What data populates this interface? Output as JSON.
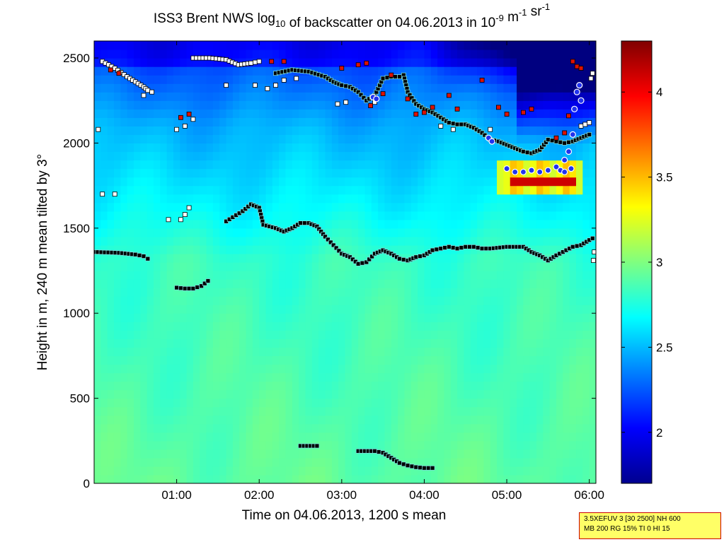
{
  "chart_data": {
    "type": "heatmap",
    "title": {
      "parts": [
        {
          "text": "ISS3 Brent NWS log"
        },
        {
          "text": "10",
          "sub": true
        },
        {
          "text": " of backscatter on 04.06.2013 in 10"
        },
        {
          "text": "-9",
          "sup": true
        },
        {
          "text": " m"
        },
        {
          "text": "-1",
          "sup": true
        },
        {
          "text": " sr"
        },
        {
          "text": "-1",
          "sup": true
        }
      ]
    },
    "xlabel": "Time on 04.06.2013, 1200 s mean",
    "ylabel": "Height in m, 240 m mean tilted by 3°",
    "x_unit": "hours",
    "xlim": [
      0.0,
      6.08
    ],
    "ylim": [
      0,
      2600
    ],
    "xticks": [
      {
        "value": 1,
        "label": "01:00"
      },
      {
        "value": 2,
        "label": "02:00"
      },
      {
        "value": 3,
        "label": "03:00"
      },
      {
        "value": 4,
        "label": "04:00"
      },
      {
        "value": 5,
        "label": "05:00"
      },
      {
        "value": 6,
        "label": "06:00"
      }
    ],
    "yticks": [
      {
        "value": 0,
        "label": "0"
      },
      {
        "value": 500,
        "label": "500"
      },
      {
        "value": 1000,
        "label": "1000"
      },
      {
        "value": 1500,
        "label": "1500"
      },
      {
        "value": 2000,
        "label": "2000"
      },
      {
        "value": 2500,
        "label": "2500"
      }
    ],
    "colorbar": {
      "colormap": "jet",
      "range": [
        1.7,
        4.3
      ],
      "ticks": [
        {
          "value": 2,
          "label": "2"
        },
        {
          "value": 2.5,
          "label": "2.5"
        },
        {
          "value": 3,
          "label": "3"
        },
        {
          "value": 3.5,
          "label": "3.5"
        },
        {
          "value": 4,
          "label": "4"
        }
      ]
    },
    "layer_lines": [
      {
        "name": "boundary-layer-top",
        "style": "black-square",
        "points": [
          [
            0.0,
            1360
          ],
          [
            0.3,
            1355
          ],
          [
            0.5,
            1345
          ],
          [
            0.6,
            1335
          ],
          [
            0.65,
            1320
          ],
          [
            1.6,
            1540
          ],
          [
            1.8,
            1600
          ],
          [
            1.9,
            1640
          ],
          [
            2.0,
            1620
          ],
          [
            2.05,
            1520
          ],
          [
            2.2,
            1500
          ],
          [
            2.3,
            1480
          ],
          [
            2.4,
            1500
          ],
          [
            2.5,
            1530
          ],
          [
            2.6,
            1530
          ],
          [
            2.7,
            1510
          ],
          [
            2.8,
            1450
          ],
          [
            2.9,
            1400
          ],
          [
            3.0,
            1350
          ],
          [
            3.1,
            1330
          ],
          [
            3.2,
            1290
          ],
          [
            3.3,
            1300
          ],
          [
            3.4,
            1350
          ],
          [
            3.5,
            1370
          ],
          [
            3.6,
            1350
          ],
          [
            3.7,
            1320
          ],
          [
            3.8,
            1310
          ],
          [
            3.9,
            1330
          ],
          [
            4.0,
            1340
          ],
          [
            4.1,
            1370
          ],
          [
            4.2,
            1380
          ],
          [
            4.3,
            1390
          ],
          [
            4.4,
            1380
          ],
          [
            4.5,
            1390
          ],
          [
            4.6,
            1390
          ],
          [
            4.7,
            1380
          ],
          [
            4.8,
            1380
          ],
          [
            5.0,
            1390
          ],
          [
            5.2,
            1390
          ],
          [
            5.3,
            1360
          ],
          [
            5.4,
            1340
          ],
          [
            5.5,
            1310
          ],
          [
            5.6,
            1340
          ],
          [
            5.8,
            1390
          ],
          [
            5.9,
            1400
          ],
          [
            6.0,
            1430
          ],
          [
            6.04,
            1440
          ]
        ]
      },
      {
        "name": "low-layer-segment-1",
        "style": "black-square",
        "points": [
          [
            1.0,
            1150
          ],
          [
            1.1,
            1145
          ],
          [
            1.2,
            1145
          ],
          [
            1.3,
            1160
          ],
          [
            1.38,
            1190
          ]
        ]
      },
      {
        "name": "low-layer-segment-2",
        "style": "black-square",
        "points": [
          [
            2.5,
            220
          ],
          [
            2.7,
            220
          ]
        ]
      },
      {
        "name": "low-layer-segment-3",
        "style": "black-square",
        "points": [
          [
            3.2,
            190
          ],
          [
            3.4,
            190
          ],
          [
            3.5,
            180
          ],
          [
            3.6,
            150
          ],
          [
            3.7,
            120
          ],
          [
            3.8,
            105
          ],
          [
            3.9,
            95
          ],
          [
            4.0,
            90
          ],
          [
            4.1,
            90
          ]
        ]
      },
      {
        "name": "upper-layer",
        "style": "black-square",
        "points": [
          [
            2.2,
            2410
          ],
          [
            2.4,
            2430
          ],
          [
            2.6,
            2420
          ],
          [
            2.8,
            2390
          ],
          [
            2.9,
            2360
          ],
          [
            3.0,
            2340
          ],
          [
            3.1,
            2330
          ],
          [
            3.2,
            2300
          ],
          [
            3.3,
            2250
          ],
          [
            3.4,
            2280
          ],
          [
            3.5,
            2380
          ],
          [
            3.6,
            2390
          ],
          [
            3.7,
            2390
          ],
          [
            3.75,
            2400
          ],
          [
            3.8,
            2300
          ],
          [
            3.9,
            2230
          ],
          [
            4.0,
            2200
          ],
          [
            4.1,
            2180
          ],
          [
            4.2,
            2150
          ],
          [
            4.3,
            2120
          ],
          [
            4.4,
            2110
          ],
          [
            4.5,
            2110
          ],
          [
            4.6,
            2090
          ],
          [
            4.7,
            2060
          ],
          [
            4.8,
            2020
          ],
          [
            4.9,
            2010
          ],
          [
            5.0,
            1990
          ],
          [
            5.1,
            1970
          ],
          [
            5.2,
            1950
          ],
          [
            5.3,
            1940
          ],
          [
            5.4,
            1960
          ],
          [
            5.5,
            2020
          ],
          [
            5.6,
            2010
          ],
          [
            5.7,
            2000
          ],
          [
            5.8,
            2010
          ],
          [
            5.9,
            2030
          ],
          [
            6.0,
            2050
          ]
        ]
      },
      {
        "name": "top-left-cluster",
        "style": "white-square",
        "points": [
          [
            0.1,
            2480
          ],
          [
            0.25,
            2440
          ],
          [
            0.4,
            2390
          ],
          [
            0.5,
            2360
          ],
          [
            0.6,
            2330
          ],
          [
            0.65,
            2310
          ]
        ]
      },
      {
        "name": "top-mid-cluster",
        "style": "white-square",
        "points": [
          [
            1.2,
            2500
          ],
          [
            1.4,
            2500
          ],
          [
            1.6,
            2490
          ],
          [
            1.75,
            2460
          ],
          [
            1.9,
            2470
          ],
          [
            2.0,
            2480
          ]
        ]
      }
    ],
    "scatter_groups": [
      {
        "name": "white-marks",
        "style": "white-square",
        "points": [
          [
            0.05,
            2080
          ],
          [
            0.1,
            1700
          ],
          [
            0.25,
            1700
          ],
          [
            0.6,
            2280
          ],
          [
            0.7,
            2300
          ],
          [
            0.9,
            1550
          ],
          [
            1.05,
            1550
          ],
          [
            1.1,
            1580
          ],
          [
            1.15,
            1620
          ],
          [
            1.0,
            2080
          ],
          [
            1.1,
            2100
          ],
          [
            1.2,
            2140
          ],
          [
            1.6,
            2340
          ],
          [
            1.95,
            2340
          ],
          [
            2.1,
            2320
          ],
          [
            2.2,
            2340
          ],
          [
            2.3,
            2370
          ],
          [
            2.45,
            2380
          ],
          [
            2.95,
            2230
          ],
          [
            3.05,
            2240
          ],
          [
            3.4,
            2240
          ],
          [
            4.2,
            2100
          ],
          [
            4.35,
            2080
          ],
          [
            4.8,
            2080
          ],
          [
            5.9,
            2100
          ],
          [
            5.95,
            2110
          ],
          [
            6.0,
            2120
          ],
          [
            6.02,
            2380
          ],
          [
            6.04,
            2410
          ],
          [
            6.05,
            1310
          ],
          [
            6.06,
            1360
          ]
        ]
      },
      {
        "name": "red-marks",
        "style": "red-square",
        "points": [
          [
            0.2,
            2430
          ],
          [
            0.3,
            2410
          ],
          [
            1.05,
            2150
          ],
          [
            1.15,
            2170
          ],
          [
            2.15,
            2480
          ],
          [
            2.3,
            2480
          ],
          [
            3.0,
            2440
          ],
          [
            3.2,
            2460
          ],
          [
            3.3,
            2470
          ],
          [
            3.35,
            2220
          ],
          [
            3.5,
            2290
          ],
          [
            3.6,
            2400
          ],
          [
            3.8,
            2260
          ],
          [
            3.9,
            2170
          ],
          [
            4.0,
            2180
          ],
          [
            4.1,
            2210
          ],
          [
            4.3,
            2280
          ],
          [
            4.4,
            2200
          ],
          [
            4.7,
            2370
          ],
          [
            4.9,
            2210
          ],
          [
            5.0,
            2170
          ],
          [
            5.2,
            2180
          ],
          [
            5.3,
            2200
          ],
          [
            5.6,
            2030
          ],
          [
            5.7,
            2060
          ],
          [
            5.75,
            2160
          ],
          [
            5.8,
            2480
          ],
          [
            5.85,
            2450
          ],
          [
            5.9,
            2440
          ]
        ]
      }
    ],
    "cloud_marks": [
      {
        "name": "cloud-blue-ring",
        "style": "blue-circle",
        "points": [
          [
            3.38,
            2270
          ],
          [
            3.42,
            2260
          ],
          [
            4.78,
            2030
          ],
          [
            4.82,
            2010
          ],
          [
            5.0,
            1850
          ],
          [
            5.1,
            1830
          ],
          [
            5.2,
            1830
          ],
          [
            5.3,
            1840
          ],
          [
            5.4,
            1830
          ],
          [
            5.5,
            1840
          ],
          [
            5.6,
            1860
          ],
          [
            5.65,
            1840
          ],
          [
            5.7,
            1900
          ],
          [
            5.75,
            1950
          ],
          [
            5.8,
            2050
          ],
          [
            5.82,
            2200
          ],
          [
            5.85,
            2300
          ],
          [
            5.88,
            2340
          ],
          [
            5.9,
            2250
          ],
          [
            5.78,
            1850
          ],
          [
            5.7,
            1830
          ]
        ]
      }
    ],
    "field": {
      "bg_base": 2.85,
      "features": [
        {
          "type": "top-dark",
          "value": 1.7
        },
        {
          "type": "upper-blue",
          "value": 2.3
        },
        {
          "type": "mid-cyan",
          "value": 2.7
        },
        {
          "type": "low-green",
          "value": 2.9
        },
        {
          "type": "cloud-yellow",
          "value": 3.4
        },
        {
          "type": "cloud-dark-red",
          "value": 4.2
        }
      ]
    }
  },
  "annotation": {
    "line1": "3.5XEFUV 3 [30 2500] NH 600",
    "line2": "MB 200 RG 15% TI 0 HI 15"
  }
}
